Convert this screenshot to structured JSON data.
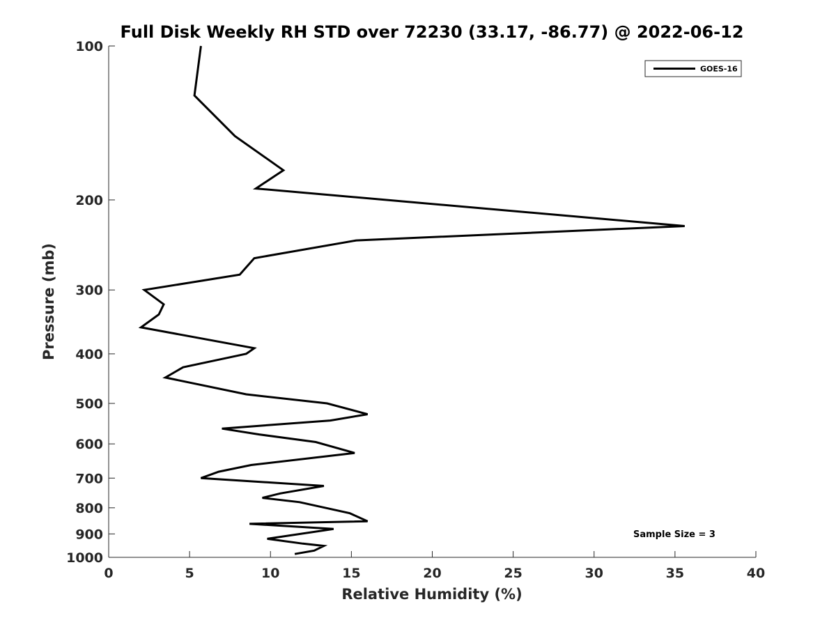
{
  "chart_data": {
    "type": "line",
    "title": "Full Disk Weekly RH STD over 72230 (33.17, -86.77) @ 2022-06-12",
    "xlabel": "Relative Humidity (%)",
    "ylabel": "Pressure (mb)",
    "xlim": [
      0,
      40
    ],
    "ylim": [
      100,
      1000
    ],
    "y_scale": "log",
    "y_reversed": true,
    "x_ticks": [
      0,
      5,
      10,
      15,
      20,
      25,
      30,
      35,
      40
    ],
    "y_ticks": [
      100,
      200,
      300,
      400,
      500,
      600,
      700,
      800,
      900,
      1000
    ],
    "grid": false,
    "legend_position": "top-right",
    "series": [
      {
        "name": "GOES-16",
        "color": "#000000",
        "points": [
          [
            5.7,
            100
          ],
          [
            5.3,
            125
          ],
          [
            7.8,
            150
          ],
          [
            10.8,
            175
          ],
          [
            9.1,
            190
          ],
          [
            35.6,
            225
          ],
          [
            15.3,
            240
          ],
          [
            9.0,
            260
          ],
          [
            8.1,
            280
          ],
          [
            2.2,
            300
          ],
          [
            3.4,
            320
          ],
          [
            3.1,
            335
          ],
          [
            2.0,
            355
          ],
          [
            9.0,
            390
          ],
          [
            8.5,
            400
          ],
          [
            4.6,
            425
          ],
          [
            3.5,
            445
          ],
          [
            8.5,
            480
          ],
          [
            13.5,
            500
          ],
          [
            16.0,
            525
          ],
          [
            13.7,
            540
          ],
          [
            7.0,
            560
          ],
          [
            9.3,
            575
          ],
          [
            12.8,
            595
          ],
          [
            15.2,
            625
          ],
          [
            8.8,
            660
          ],
          [
            6.8,
            680
          ],
          [
            5.7,
            700
          ],
          [
            13.3,
            725
          ],
          [
            10.6,
            750
          ],
          [
            9.5,
            765
          ],
          [
            11.8,
            780
          ],
          [
            14.9,
            820
          ],
          [
            16.0,
            850
          ],
          [
            8.7,
            860
          ],
          [
            13.9,
            880
          ],
          [
            9.8,
            920
          ],
          [
            12.0,
            940
          ],
          [
            13.3,
            950
          ],
          [
            12.7,
            970
          ],
          [
            11.5,
            985
          ]
        ]
      }
    ],
    "annotations": [
      "Sample Size = 3"
    ]
  }
}
